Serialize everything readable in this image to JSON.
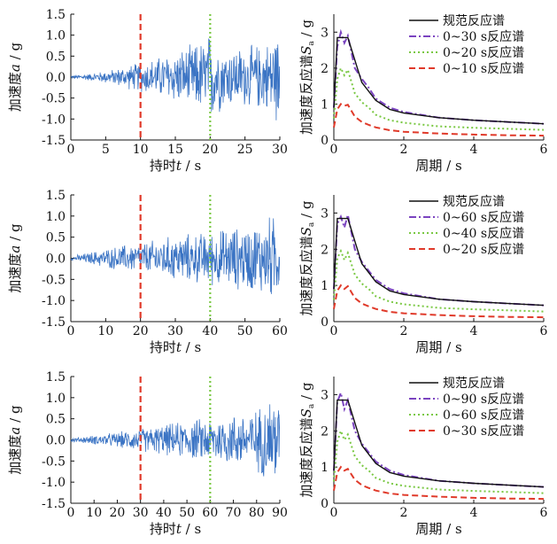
{
  "colors": {
    "signal": "#3b74c4",
    "code": "#111111",
    "dashdot": "#7b44c0",
    "dotted": "#7ac843",
    "dashed": "#e03a2a",
    "axis": "#111111"
  },
  "chart_data": [
    {
      "type": "line",
      "panel": "time-history-1",
      "xlabel_cn": "持时",
      "xlabel_sym": "t",
      "xlabel_unit": "/ s",
      "ylabel_cn": "加速度",
      "ylabel_sym": "a",
      "ylabel_unit": "/ g",
      "xlim": [
        0,
        30
      ],
      "ylim": [
        -1.5,
        1.5
      ],
      "xticks": [
        "0",
        "5",
        "10",
        "15",
        "20",
        "25",
        "30"
      ],
      "yticks": [
        "1.5",
        "1.0",
        "0.5",
        "0.0",
        "-0.5",
        "-1.0",
        "-1.5"
      ],
      "markers": [
        {
          "x": 10,
          "style": "dashed",
          "color": "#e03a2a"
        },
        {
          "x": 20,
          "style": "dotted",
          "color": "#7ac843"
        }
      ],
      "envelope": {
        "x": [
          0,
          3,
          6,
          8,
          10,
          12,
          15,
          17,
          19,
          20,
          22,
          25,
          28,
          30
        ],
        "amp": [
          0.05,
          0.1,
          0.2,
          0.3,
          0.4,
          0.5,
          0.7,
          0.8,
          1.0,
          1.2,
          0.8,
          0.8,
          0.9,
          1.3
        ]
      }
    },
    {
      "type": "line",
      "panel": "response-spectrum-1",
      "xlabel_cn": "周期",
      "xlabel_unit": "/ s",
      "ylabel_cn": "加速度反应谱",
      "ylabel_sym": "S",
      "ylabel_sub": "a",
      "ylabel_unit": "/ g",
      "xlim": [
        0,
        6
      ],
      "ylim": [
        0,
        3.5
      ],
      "xticks": [
        "0",
        "2",
        "4",
        "6"
      ],
      "yticks": [
        "3",
        "2",
        "1",
        "0"
      ],
      "series": [
        {
          "name": "规范反应谱",
          "style": "solid",
          "color": "#111111",
          "x": [
            0,
            0.1,
            0.4,
            0.8,
            1.2,
            1.6,
            2,
            3,
            4,
            5,
            6
          ],
          "y": [
            0.9,
            2.85,
            2.85,
            1.6,
            1.1,
            0.85,
            0.75,
            0.62,
            0.55,
            0.5,
            0.45
          ]
        },
        {
          "name": "0~30 s反应谱",
          "style": "dashdot",
          "color": "#7b44c0",
          "x": [
            0,
            0.1,
            0.2,
            0.3,
            0.4,
            0.6,
            0.8,
            1.0,
            1.2,
            1.6,
            2,
            3,
            4,
            5,
            6
          ],
          "y": [
            0.9,
            2.6,
            3.0,
            2.7,
            2.9,
            2.0,
            1.7,
            1.45,
            1.15,
            0.9,
            0.78,
            0.62,
            0.55,
            0.5,
            0.45
          ]
        },
        {
          "name": "0~20 s反应谱",
          "style": "dotted",
          "color": "#7ac843",
          "x": [
            0,
            0.1,
            0.2,
            0.3,
            0.4,
            0.6,
            0.8,
            1.0,
            1.2,
            1.6,
            2,
            3,
            4,
            5,
            6
          ],
          "y": [
            0.6,
            1.7,
            2.0,
            1.8,
            1.95,
            1.3,
            1.05,
            0.9,
            0.7,
            0.55,
            0.48,
            0.38,
            0.34,
            0.31,
            0.28
          ]
        },
        {
          "name": "0~10 s反应谱",
          "style": "dashed",
          "color": "#e03a2a",
          "x": [
            0,
            0.1,
            0.2,
            0.3,
            0.4,
            0.6,
            0.8,
            1.0,
            1.2,
            1.6,
            2,
            3,
            4,
            5,
            6
          ],
          "y": [
            0.35,
            0.85,
            1.0,
            0.95,
            0.98,
            0.65,
            0.5,
            0.42,
            0.35,
            0.27,
            0.23,
            0.18,
            0.15,
            0.13,
            0.12
          ]
        }
      ]
    },
    {
      "type": "line",
      "panel": "time-history-2",
      "xlabel_cn": "持时",
      "xlabel_sym": "t",
      "xlabel_unit": "/ s",
      "ylabel_cn": "加速度",
      "ylabel_sym": "a",
      "ylabel_unit": "/ g",
      "xlim": [
        0,
        60
      ],
      "ylim": [
        -1.5,
        1.5
      ],
      "xticks": [
        "0",
        "10",
        "20",
        "30",
        "40",
        "50",
        "60"
      ],
      "yticks": [
        "1.5",
        "1.0",
        "0.5",
        "0.0",
        "-0.5",
        "-1.0",
        "-1.5"
      ],
      "markers": [
        {
          "x": 20,
          "style": "dashed",
          "color": "#e03a2a"
        },
        {
          "x": 40,
          "style": "dotted",
          "color": "#7ac843"
        }
      ],
      "envelope": {
        "x": [
          0,
          5,
          10,
          15,
          20,
          25,
          30,
          35,
          40,
          45,
          50,
          55,
          58,
          60
        ],
        "amp": [
          0.05,
          0.15,
          0.25,
          0.35,
          0.4,
          0.5,
          0.6,
          0.65,
          0.7,
          0.8,
          0.85,
          1.0,
          1.15,
          0.9
        ]
      }
    },
    {
      "type": "line",
      "panel": "response-spectrum-2",
      "xlabel_cn": "周期",
      "xlabel_unit": "/ s",
      "ylabel_cn": "加速度反应谱",
      "ylabel_sym": "S",
      "ylabel_sub": "a",
      "ylabel_unit": "/ g",
      "xlim": [
        0,
        6
      ],
      "ylim": [
        0,
        3.5
      ],
      "xticks": [
        "0",
        "2",
        "4",
        "6"
      ],
      "yticks": [
        "3",
        "2",
        "1",
        "0"
      ],
      "series": [
        {
          "name": "规范反应谱",
          "style": "solid",
          "color": "#111111",
          "x": [
            0,
            0.1,
            0.4,
            0.8,
            1.2,
            1.6,
            2,
            3,
            4,
            5,
            6
          ],
          "y": [
            0.9,
            2.85,
            2.85,
            1.6,
            1.1,
            0.85,
            0.75,
            0.62,
            0.55,
            0.5,
            0.45
          ]
        },
        {
          "name": "0~60 s反应谱",
          "style": "dashdot",
          "color": "#7b44c0",
          "x": [
            0,
            0.1,
            0.2,
            0.3,
            0.4,
            0.6,
            0.8,
            1.0,
            1.2,
            1.6,
            2,
            3,
            4,
            5,
            6
          ],
          "y": [
            0.9,
            2.7,
            2.9,
            2.6,
            2.95,
            2.0,
            1.65,
            1.4,
            1.15,
            0.9,
            0.78,
            0.62,
            0.55,
            0.5,
            0.45
          ]
        },
        {
          "name": "0~40 s反应谱",
          "style": "dotted",
          "color": "#7ac843",
          "x": [
            0,
            0.1,
            0.2,
            0.3,
            0.4,
            0.6,
            0.8,
            1.0,
            1.2,
            1.6,
            2,
            3,
            4,
            5,
            6
          ],
          "y": [
            0.6,
            1.75,
            1.95,
            1.7,
            1.9,
            1.3,
            1.05,
            0.9,
            0.7,
            0.55,
            0.48,
            0.38,
            0.34,
            0.31,
            0.28
          ]
        },
        {
          "name": "0~20 s反应谱",
          "style": "dashed",
          "color": "#e03a2a",
          "x": [
            0,
            0.1,
            0.2,
            0.3,
            0.4,
            0.6,
            0.8,
            1.0,
            1.2,
            1.6,
            2,
            3,
            4,
            5,
            6
          ],
          "y": [
            0.35,
            0.85,
            1.0,
            0.9,
            0.98,
            0.65,
            0.5,
            0.42,
            0.35,
            0.27,
            0.23,
            0.18,
            0.15,
            0.13,
            0.12
          ]
        }
      ]
    },
    {
      "type": "line",
      "panel": "time-history-3",
      "xlabel_cn": "持时",
      "xlabel_sym": "t",
      "xlabel_unit": "/ s",
      "ylabel_cn": "加速度",
      "ylabel_sym": "a",
      "ylabel_unit": "/ g",
      "xlim": [
        0,
        90
      ],
      "ylim": [
        -1.5,
        1.5
      ],
      "xticks": [
        "0",
        "10",
        "20",
        "30",
        "40",
        "50",
        "60",
        "70",
        "80",
        "90"
      ],
      "yticks": [
        "1.5",
        "1.0",
        "0.5",
        "0.0",
        "-0.5",
        "-1.0",
        "-1.5"
      ],
      "markers": [
        {
          "x": 30,
          "style": "dashed",
          "color": "#e03a2a"
        },
        {
          "x": 60,
          "style": "dotted",
          "color": "#7ac843"
        }
      ],
      "envelope": {
        "x": [
          0,
          10,
          20,
          30,
          40,
          50,
          60,
          70,
          80,
          88,
          90
        ],
        "amp": [
          0.05,
          0.12,
          0.2,
          0.3,
          0.4,
          0.5,
          0.6,
          0.7,
          0.8,
          1.3,
          0.9
        ]
      }
    },
    {
      "type": "line",
      "panel": "response-spectrum-3",
      "xlabel_cn": "周期",
      "xlabel_unit": "/ s",
      "ylabel_cn": "加速度反应谱",
      "ylabel_sym": "S",
      "ylabel_sub": "a",
      "ylabel_unit": "/ g",
      "xlim": [
        0,
        6
      ],
      "ylim": [
        0,
        3.5
      ],
      "xticks": [
        "0",
        "2",
        "4",
        "6"
      ],
      "yticks": [
        "3",
        "2",
        "1",
        "0"
      ],
      "series": [
        {
          "name": "规范反应谱",
          "style": "solid",
          "color": "#111111",
          "x": [
            0,
            0.1,
            0.4,
            0.8,
            1.2,
            1.6,
            2,
            3,
            4,
            5,
            6
          ],
          "y": [
            0.9,
            2.85,
            2.85,
            1.6,
            1.1,
            0.85,
            0.75,
            0.62,
            0.55,
            0.5,
            0.45
          ]
        },
        {
          "name": "0~90 s反应谱",
          "style": "dashdot",
          "color": "#7b44c0",
          "x": [
            0,
            0.1,
            0.2,
            0.3,
            0.4,
            0.6,
            0.8,
            1.0,
            1.2,
            1.6,
            2,
            3,
            4,
            5,
            6
          ],
          "y": [
            0.9,
            2.8,
            3.05,
            2.6,
            2.85,
            2.0,
            1.65,
            1.4,
            1.15,
            0.9,
            0.78,
            0.62,
            0.55,
            0.5,
            0.45
          ]
        },
        {
          "name": "0~60 s反应谱",
          "style": "dotted",
          "color": "#7ac843",
          "x": [
            0,
            0.1,
            0.2,
            0.3,
            0.4,
            0.6,
            0.8,
            1.0,
            1.2,
            1.6,
            2,
            3,
            4,
            5,
            6
          ],
          "y": [
            0.6,
            1.7,
            2.0,
            1.75,
            1.9,
            1.3,
            1.05,
            0.9,
            0.7,
            0.55,
            0.48,
            0.38,
            0.34,
            0.31,
            0.28
          ]
        },
        {
          "name": "0~30 s反应谱",
          "style": "dashed",
          "color": "#e03a2a",
          "x": [
            0,
            0.1,
            0.2,
            0.3,
            0.4,
            0.6,
            0.8,
            1.0,
            1.2,
            1.6,
            2,
            3,
            4,
            5,
            6
          ],
          "y": [
            0.35,
            0.85,
            1.0,
            0.9,
            0.95,
            0.65,
            0.5,
            0.42,
            0.35,
            0.27,
            0.23,
            0.18,
            0.15,
            0.13,
            0.12
          ]
        }
      ]
    }
  ]
}
